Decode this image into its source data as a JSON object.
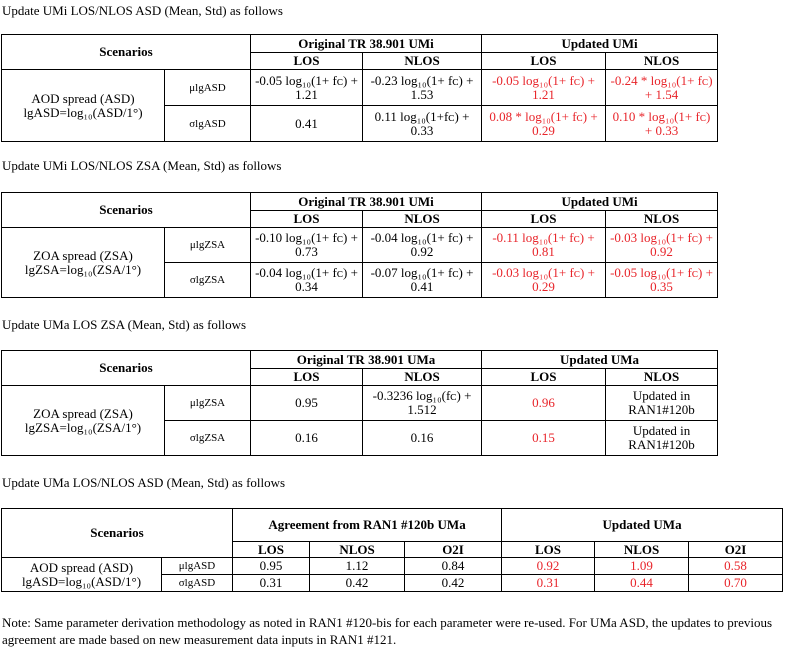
{
  "sections": [
    {
      "heading": "Update UMi LOS/NLOS ASD (Mean, Std) as follows",
      "col_headers": {
        "scenarios": "Scenarios",
        "original": "Original TR 38.901 UMi",
        "updated": "Updated UMi",
        "cols": [
          "LOS",
          "NLOS",
          "LOS",
          "NLOS"
        ]
      },
      "row_label": {
        "line1": "AOD spread (ASD)",
        "line2": "lgASD=log₁₀(ASD/1°)"
      },
      "rows": [
        {
          "symbol": "μlgASD",
          "cells": [
            {
              "text": "-0.05 log₁₀(1+ fᴄ) + 1.21",
              "red": false
            },
            {
              "text": "-0.23 log₁₀(1+ fᴄ) + 1.53",
              "red": false
            },
            {
              "text": "-0.05 log₁₀(1+ fᴄ) + 1.21",
              "red": true
            },
            {
              "text": "-0.24 * log₁₀(1+ fᴄ) + 1.54",
              "red": true
            }
          ]
        },
        {
          "symbol": "σlgASD",
          "cells": [
            {
              "text": "0.41",
              "red": false
            },
            {
              "text": "0.11 log₁₀(1+fᴄ) + 0.33",
              "red": false
            },
            {
              "text": "0.08 * log₁₀(1+ fᴄ) + 0.29",
              "red": true
            },
            {
              "text": "0.10 * log₁₀(1+ fᴄ) + 0.33",
              "red": true
            }
          ]
        }
      ]
    },
    {
      "heading": "Update UMi LOS/NLOS ZSA (Mean, Std) as follows",
      "col_headers": {
        "scenarios": "Scenarios",
        "original": "Original TR 38.901 UMi",
        "updated": "Updated UMi",
        "cols": [
          "LOS",
          "NLOS",
          "LOS",
          "NLOS"
        ]
      },
      "row_label": {
        "line1": "ZOA spread (ZSA)",
        "line2": "lgZSA=log₁₀(ZSA/1°)"
      },
      "rows": [
        {
          "symbol": "μlgZSA",
          "cells": [
            {
              "text": "-0.10 log₁₀(1+ fᴄ) + 0.73",
              "red": false
            },
            {
              "text": "-0.04 log₁₀(1+ fᴄ) + 0.92",
              "red": false
            },
            {
              "text": "-0.11 log₁₀(1+ fᴄ) + 0.81",
              "red": true
            },
            {
              "text": "-0.03 log₁₀(1+ fᴄ) + 0.92",
              "red": true
            }
          ]
        },
        {
          "symbol": "σlgZSA",
          "cells": [
            {
              "text": "-0.04 log₁₀(1+ fᴄ) + 0.34",
              "red": false
            },
            {
              "text": "-0.07 log₁₀(1+ fᴄ) + 0.41",
              "red": false
            },
            {
              "text": "-0.03 log₁₀(1+ fᴄ) + 0.29",
              "red": true
            },
            {
              "text": "-0.05 log₁₀(1+ fᴄ) + 0.35",
              "red": true
            }
          ]
        }
      ]
    },
    {
      "heading": "Update UMa LOS ZSA (Mean, Std) as follows",
      "col_headers": {
        "scenarios": "Scenarios",
        "original": "Original TR 38.901 UMa",
        "updated": "Updated UMa",
        "cols": [
          "LOS",
          "NLOS",
          "LOS",
          "NLOS"
        ]
      },
      "row_label": {
        "line1": "ZOA spread (ZSA)",
        "line2": "lgZSA=log₁₀(ZSA/1°)"
      },
      "rows": [
        {
          "symbol": "μlgZSA",
          "cells": [
            {
              "text": "0.95",
              "red": false
            },
            {
              "text": "-0.3236 log₁₀(fᴄ) + 1.512",
              "red": false
            },
            {
              "text": "0.96",
              "red": true
            },
            {
              "text": "Updated in RAN1#120b",
              "red": false
            }
          ]
        },
        {
          "symbol": "σlgZSA",
          "cells": [
            {
              "text": "0.16",
              "red": false
            },
            {
              "text": "0.16",
              "red": false
            },
            {
              "text": "0.15",
              "red": true
            },
            {
              "text": "Updated in RAN1#120b",
              "red": false
            }
          ]
        }
      ]
    },
    {
      "heading": "Update UMa LOS/NLOS ASD (Mean, Std) as follows",
      "col_headers": {
        "scenarios": "Scenarios",
        "original": "Agreement from RAN1 #120b UMa",
        "updated": "Updated UMa",
        "cols": [
          "LOS",
          "NLOS",
          "O2I",
          "LOS",
          "NLOS",
          "O2I"
        ]
      },
      "row_label": {
        "line1": "AOD spread (ASD)",
        "line2": "lgASD=log₁₀(ASD/1°)"
      },
      "rows": [
        {
          "symbol": "μlgASD",
          "cells": [
            {
              "text": "0.95",
              "red": false
            },
            {
              "text": "1.12",
              "red": false
            },
            {
              "text": "0.84",
              "red": false
            },
            {
              "text": "0.92",
              "red": true
            },
            {
              "text": "1.09",
              "red": true
            },
            {
              "text": "0.58",
              "red": true
            }
          ]
        },
        {
          "symbol": "σlgASD",
          "cells": [
            {
              "text": "0.31",
              "red": false
            },
            {
              "text": "0.42",
              "red": false
            },
            {
              "text": "0.42",
              "red": false
            },
            {
              "text": "0.31",
              "red": true
            },
            {
              "text": "0.44",
              "red": true
            },
            {
              "text": "0.70",
              "red": true
            }
          ]
        }
      ]
    }
  ],
  "note": "Note: Same parameter derivation methodology as noted in RAN1 #120-bis for each parameter were re-used. For UMa ASD, the updates to previous agreement are made based on new measurement data inputs in RAN1 #121.",
  "colors": {
    "updated_value": "#e8242a",
    "text": "#000000"
  }
}
